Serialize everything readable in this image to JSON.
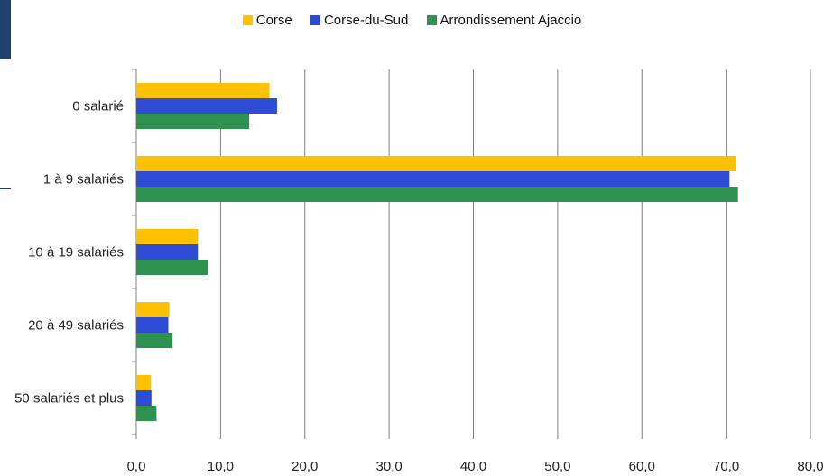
{
  "chart_data": {
    "type": "bar",
    "orientation": "horizontal",
    "categories": [
      "0 salarié",
      "1 à 9 salariés",
      "10 à 19 salariés",
      "20 à 49 salariés",
      "50 salariés et plus"
    ],
    "series": [
      {
        "name": "Corse",
        "color": "#ffc000",
        "values": [
          15.8,
          71.2,
          7.3,
          3.9,
          1.7
        ]
      },
      {
        "name": "Corse-du-Sud",
        "color": "#2e4bd6",
        "values": [
          16.7,
          70.4,
          7.3,
          3.8,
          1.8
        ]
      },
      {
        "name": "Arrondissement Ajaccio",
        "color": "#2e9150",
        "values": [
          13.4,
          71.4,
          8.5,
          4.3,
          2.4
        ]
      }
    ],
    "xlim": [
      0,
      80
    ],
    "xticks": [
      "0,0",
      "10,0",
      "20,0",
      "30,0",
      "40,0",
      "50,0",
      "60,0",
      "70,0",
      "80,0"
    ],
    "grid": "vertical",
    "legend_position": "top"
  }
}
